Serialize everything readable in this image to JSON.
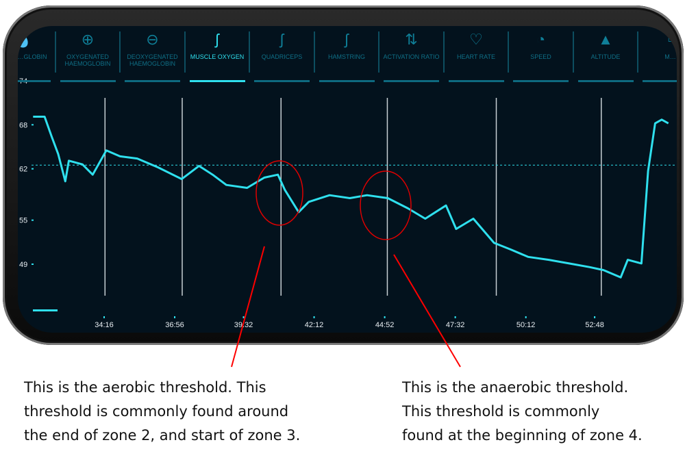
{
  "tabs": [
    {
      "label": "…TAL …GLOBIN",
      "icon": "blood-drop-icon",
      "active": false
    },
    {
      "label": "OXYGENATED HAEMOGLOBIN",
      "icon": "blood-drop-plus-o2-icon",
      "active": false
    },
    {
      "label": "DEOXYGENATED HAEMOGLOBIN",
      "icon": "blood-drop-minus-o2-icon",
      "active": false
    },
    {
      "label": "MUSCLE OXYGEN",
      "icon": "leg-o2-icon",
      "active": true
    },
    {
      "label": "QUADRICEPS",
      "icon": "leg-icon",
      "active": false
    },
    {
      "label": "HAMSTRING",
      "icon": "leg-icon",
      "active": false
    },
    {
      "label": "ACTIVATION RATIO",
      "icon": "up-down-arrows-icon",
      "active": false
    },
    {
      "label": "HEART RATE",
      "icon": "heart-pulse-icon",
      "active": false
    },
    {
      "label": "SPEED",
      "icon": "speedometer-icon",
      "active": false
    },
    {
      "label": "ALTITUDE",
      "icon": "mountain-icon",
      "active": false
    },
    {
      "label": "M…",
      "icon": "unknown-icon",
      "active": false
    }
  ],
  "colors": {
    "background": "#03121d",
    "accent": "#2fe0ee",
    "tab": "#0f6f86",
    "annotation": "#ff0000"
  },
  "chart_data": {
    "type": "line",
    "y_ticks": [
      "74",
      "68",
      "62",
      "55",
      "49"
    ],
    "ylim": [
      49,
      74
    ],
    "x_ticks": [
      "34:16",
      "36:56",
      "39:32",
      "42:12",
      "44:52",
      "47:32",
      "50:12",
      "52:48"
    ],
    "threshold_line": 62.5,
    "zone_markers": [
      "34:18",
      "37:13",
      "40:57",
      "44:58",
      "49:05",
      "53:03"
    ],
    "series": [
      {
        "x": [
          "31:35",
          "32:01",
          "32:17",
          "32:32",
          "32:48",
          "32:56",
          "33:27",
          "33:50",
          "34:21",
          "34:52",
          "35:31",
          "36:18",
          "37:12",
          "37:51",
          "38:22",
          "38:53",
          "39:40",
          "40:19",
          "40:50",
          "41:06",
          "41:37",
          "42:00",
          "42:47",
          "43:33",
          "44:12",
          "44:59",
          "45:45",
          "46:24",
          "47:11",
          "47:34",
          "48:13",
          "49:00",
          "49:38",
          "50:17",
          "51:04",
          "51:50",
          "52:37",
          "53:08",
          "53:47",
          "54:03",
          "54:34",
          "54:49",
          "55:05",
          "55:20",
          "55:35"
        ],
        "values": [
          69.1,
          69.1,
          66.4,
          64.0,
          60.3,
          63.1,
          62.6,
          61.2,
          64.5,
          63.7,
          63.4,
          62.2,
          60.6,
          62.4,
          61.2,
          59.8,
          59.4,
          60.8,
          61.2,
          59.1,
          56.1,
          57.5,
          58.4,
          58.0,
          58.4,
          58.0,
          56.6,
          55.2,
          57.0,
          53.8,
          55.2,
          51.9,
          51.0,
          50.0,
          49.6,
          49.1,
          48.6,
          48.2,
          47.2,
          49.6,
          49.1,
          61.7,
          68.2,
          68.7,
          68.2
        ]
      }
    ],
    "highlights": [
      {
        "at": "40:57"
      },
      {
        "at": "44:58"
      }
    ]
  },
  "annotations": {
    "left": [
      "This is the aerobic threshold. This",
      "threshold is commonly found around",
      "the end of zone 2, and start of zone 3."
    ],
    "right": [
      "This is the anaerobic threshold.",
      "This threshold is commonly",
      "found at the beginning of zone 4."
    ]
  }
}
